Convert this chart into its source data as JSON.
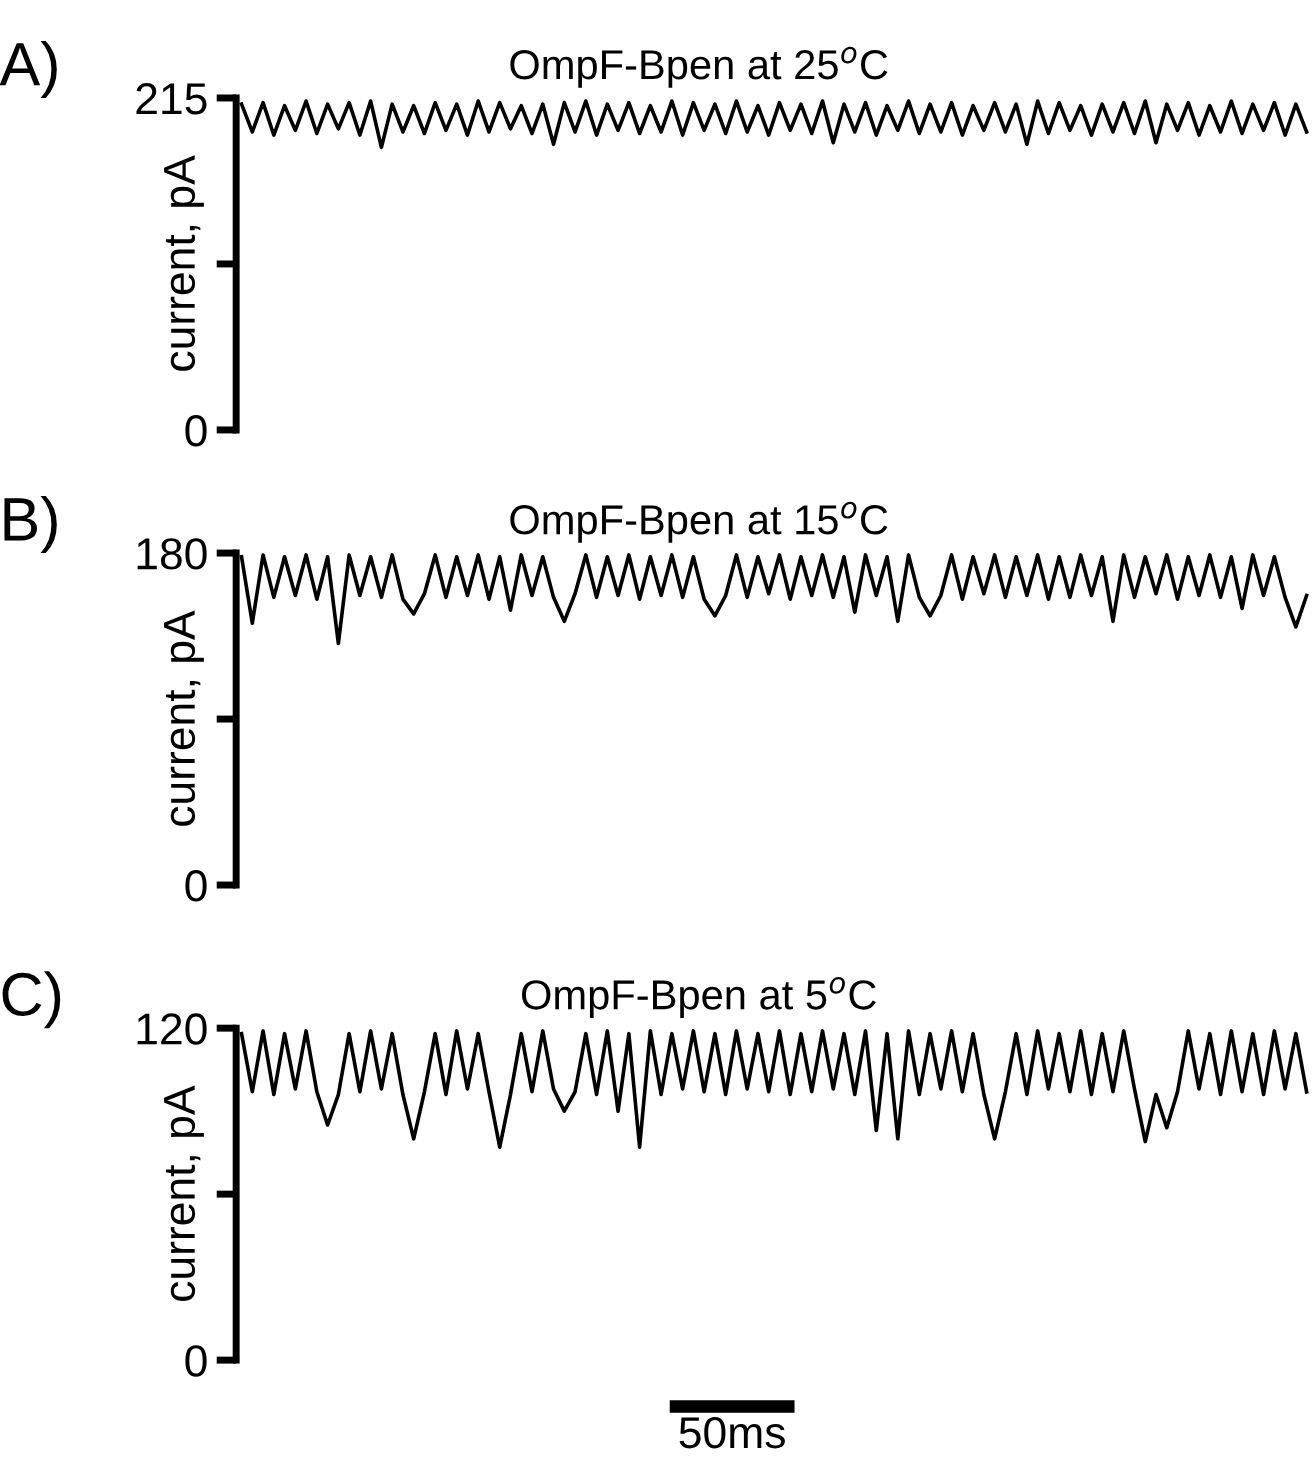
{
  "chart_data": [
    {
      "type": "line",
      "title": "OmpF-Bpen at 25$^{o}$C",
      "ylabel": "current, pA",
      "annotations": [
        "A)"
      ],
      "tick_labels": "y",
      "categories": [
        null,
        null,
        null,
        null,
        null,
        null,
        null,
        null,
        null,
        null,
        null,
        null,
        null,
        null,
        null,
        null,
        null,
        null,
        null,
        null,
        null,
        null,
        null,
        null,
        null,
        null,
        null,
        null,
        null,
        null,
        null,
        null,
        null,
        null,
        null,
        null,
        null,
        null,
        null,
        null,
        null,
        null,
        null,
        null,
        null,
        null,
        null,
        null,
        null,
        null,
        null,
        null,
        null,
        null,
        null,
        null,
        null,
        null,
        null,
        null,
        null,
        null,
        null,
        null,
        null,
        null,
        null,
        null,
        null,
        null,
        null,
        null,
        null,
        null,
        null,
        null,
        null,
        null,
        null,
        null,
        null,
        null,
        null,
        null,
        null,
        null,
        null,
        null,
        null,
        null,
        null,
        null,
        null,
        null,
        null,
        null,
        null,
        null,
        null,
        null
      ],
      "series": [
        {
          "color": "#000000",
          "values": [
            211,
            193,
            212,
            191,
            210,
            194,
            213,
            192,
            211,
            195,
            212,
            191,
            213,
            183,
            211,
            193,
            210,
            192,
            212,
            194,
            211,
            191,
            213,
            193,
            212,
            195,
            210,
            192,
            211,
            185,
            212,
            193,
            213,
            191,
            211,
            194,
            212,
            192,
            210,
            193,
            213,
            191,
            212,
            194,
            211,
            192,
            213,
            193,
            210,
            191,
            212,
            194,
            211,
            192,
            213,
            186,
            211,
            193,
            212,
            191,
            210,
            194,
            213,
            192,
            211,
            193,
            212,
            191,
            210,
            194,
            212,
            193,
            211,
            185,
            213,
            192,
            212,
            194,
            210,
            191,
            211,
            193,
            212,
            192,
            213,
            186,
            211,
            194,
            212,
            191,
            210,
            193,
            213,
            192,
            211,
            194,
            212,
            191,
            211,
            193
          ]
        }
      ],
      "ylim": [
        0,
        215
      ],
      "yticks": [
        0,
        {
          "value": 107.5,
          "label": null
        },
        215
      ]
    },
    {
      "type": "line",
      "title": "OmpF-Bpen at 15$^{o}$C",
      "ylabel": "current, pA",
      "annotations": [
        "B)"
      ],
      "tick_labels": "y",
      "categories": [
        null,
        null,
        null,
        null,
        null,
        null,
        null,
        null,
        null,
        null,
        null,
        null,
        null,
        null,
        null,
        null,
        null,
        null,
        null,
        null,
        null,
        null,
        null,
        null,
        null,
        null,
        null,
        null,
        null,
        null,
        null,
        null,
        null,
        null,
        null,
        null,
        null,
        null,
        null,
        null,
        null,
        null,
        null,
        null,
        null,
        null,
        null,
        null,
        null,
        null,
        null,
        null,
        null,
        null,
        null,
        null,
        null,
        null,
        null,
        null,
        null,
        null,
        null,
        null,
        null,
        null,
        null,
        null,
        null,
        null,
        null,
        null,
        null,
        null,
        null,
        null,
        null,
        null,
        null,
        null,
        null,
        null,
        null,
        null,
        null,
        null,
        null,
        null,
        null,
        null,
        null,
        null,
        null,
        null,
        null,
        null,
        null,
        null,
        null,
        null
      ],
      "series": [
        {
          "color": "#000000",
          "values": [
            178,
            142,
            179,
            156,
            178,
            157,
            179,
            155,
            178,
            131,
            179,
            157,
            178,
            156,
            179,
            155,
            147,
            158,
            179,
            156,
            178,
            157,
            179,
            155,
            178,
            149,
            179,
            157,
            178,
            156,
            143,
            158,
            179,
            156,
            178,
            157,
            179,
            155,
            178,
            157,
            179,
            156,
            178,
            155,
            146,
            157,
            179,
            156,
            178,
            158,
            179,
            155,
            178,
            157,
            179,
            156,
            178,
            148,
            179,
            157,
            178,
            143,
            179,
            156,
            146,
            157,
            179,
            155,
            178,
            158,
            179,
            156,
            178,
            157,
            179,
            155,
            178,
            156,
            179,
            157,
            178,
            143,
            179,
            156,
            178,
            158,
            179,
            155,
            178,
            157,
            179,
            156,
            178,
            150,
            179,
            157,
            178,
            156,
            140,
            157
          ]
        }
      ],
      "ylim": [
        0,
        180
      ],
      "yticks": [
        0,
        {
          "value": 90,
          "label": null
        },
        180
      ]
    },
    {
      "type": "line",
      "title": "OmpF-Bpen at 5$^{o}$C",
      "ylabel": "current, pA",
      "annotations": [
        "C)",
        "50ms"
      ],
      "tick_labels": "y",
      "categories": [
        null,
        null,
        null,
        null,
        null,
        null,
        null,
        null,
        null,
        null,
        null,
        null,
        null,
        null,
        null,
        null,
        null,
        null,
        null,
        null,
        null,
        null,
        null,
        null,
        null,
        null,
        null,
        null,
        null,
        null,
        null,
        null,
        null,
        null,
        null,
        null,
        null,
        null,
        null,
        null,
        null,
        null,
        null,
        null,
        null,
        null,
        null,
        null,
        null,
        null,
        null,
        null,
        null,
        null,
        null,
        null,
        null,
        null,
        null,
        null,
        null,
        null,
        null,
        null,
        null,
        null,
        null,
        null,
        null,
        null,
        null,
        null,
        null,
        null,
        null,
        null,
        null,
        null,
        null,
        null,
        null,
        null,
        null,
        null,
        null,
        null,
        null,
        null,
        null,
        null,
        null,
        null,
        null,
        null,
        null,
        null,
        null,
        null,
        null,
        null
      ],
      "series": [
        {
          "color": "#000000",
          "values": [
            118,
            97,
            119,
            96,
            118,
            98,
            119,
            97,
            85,
            96,
            118,
            97,
            119,
            98,
            118,
            96,
            80,
            97,
            118,
            96,
            119,
            98,
            118,
            97,
            77,
            96,
            118,
            97,
            119,
            98,
            90,
            97,
            118,
            96,
            119,
            90,
            118,
            77,
            119,
            96,
            118,
            98,
            119,
            97,
            118,
            96,
            119,
            98,
            118,
            97,
            119,
            96,
            118,
            97,
            119,
            98,
            118,
            96,
            119,
            83,
            118,
            80,
            119,
            96,
            118,
            98,
            119,
            97,
            118,
            96,
            80,
            97,
            118,
            96,
            119,
            98,
            118,
            97,
            119,
            96,
            118,
            97,
            119,
            98,
            79,
            96,
            84,
            97,
            119,
            98,
            118,
            96,
            119,
            97,
            118,
            96,
            119,
            98,
            118,
            97
          ]
        }
      ],
      "ylim": [
        0,
        120
      ],
      "yticks": [
        0,
        {
          "value": 60,
          "label": null
        },
        120
      ]
    }
  ]
}
